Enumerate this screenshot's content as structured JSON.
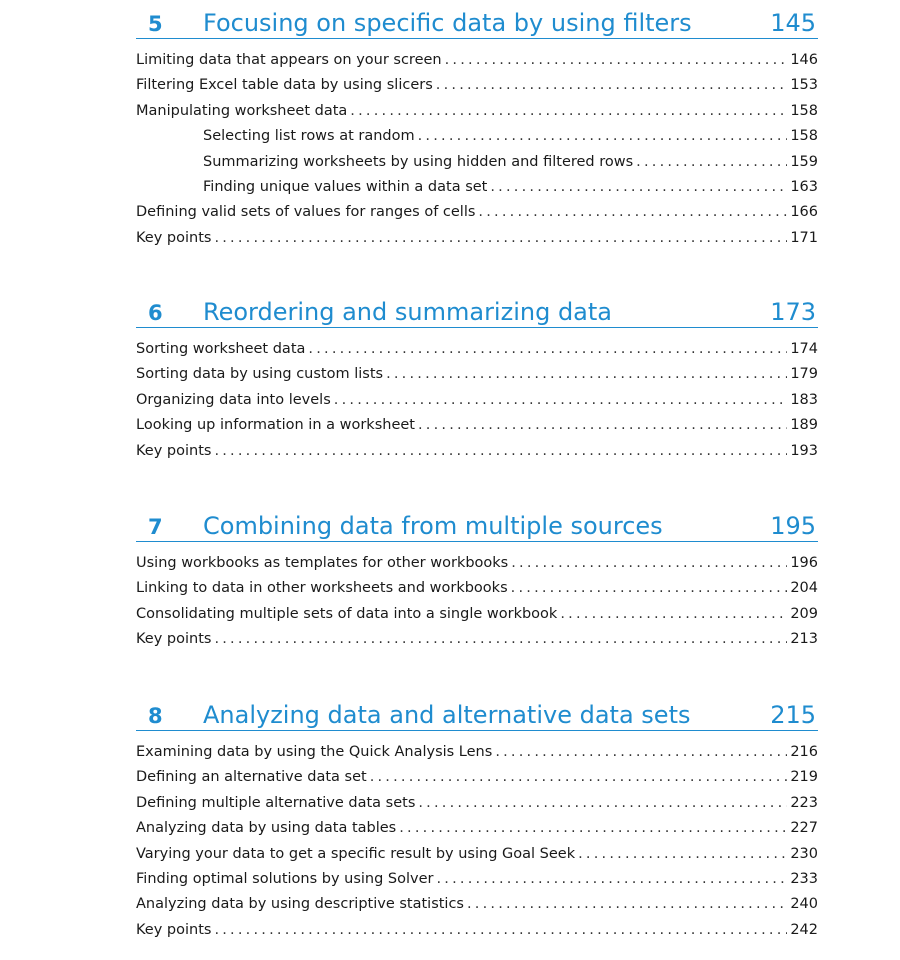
{
  "chapters": [
    {
      "number": "5",
      "title": "Focusing on specific data by using filters",
      "page": "145",
      "entries": [
        {
          "title": "Limiting data that appears on your screen",
          "page": "146"
        },
        {
          "title": "Filtering Excel table data by using slicers",
          "page": "153"
        },
        {
          "title": "Manipulating worksheet data",
          "page": "158"
        },
        {
          "title": "Selecting list rows at random",
          "page": "158"
        },
        {
          "title": "Summarizing worksheets by using hidden and filtered rows",
          "page": "159"
        },
        {
          "title": "Finding unique values within a data set",
          "page": "163"
        },
        {
          "title": "Defining valid sets of values for ranges of cells",
          "page": "166"
        },
        {
          "title": "Key points",
          "page": "171"
        }
      ]
    },
    {
      "number": "6",
      "title": "Reordering and summarizing data",
      "page": "173",
      "entries": [
        {
          "title": "Sorting worksheet data",
          "page": "174"
        },
        {
          "title": "Sorting data by using custom lists",
          "page": "179"
        },
        {
          "title": "Organizing data into levels",
          "page": "183"
        },
        {
          "title": "Looking up information in a worksheet",
          "page": "189"
        },
        {
          "title": "Key points",
          "page": "193"
        }
      ]
    },
    {
      "number": "7",
      "title": "Combining data from multiple sources",
      "page": "195",
      "entries": [
        {
          "title": "Using workbooks as templates for other workbooks",
          "page": "196"
        },
        {
          "title": "Linking to data in other worksheets and workbooks",
          "page": "204"
        },
        {
          "title": "Consolidating multiple sets of data into a single workbook",
          "page": "209"
        },
        {
          "title": "Key points",
          "page": "213"
        }
      ]
    },
    {
      "number": "8",
      "title": "Analyzing data and alternative data sets",
      "page": "215",
      "entries": [
        {
          "title": "Examining data by using the Quick Analysis Lens",
          "page": "216"
        },
        {
          "title": "Defining an alternative data set",
          "page": "219"
        },
        {
          "title": "Defining multiple alternative data sets",
          "page": "223"
        },
        {
          "title": "Analyzing data by using data tables",
          "page": "227"
        },
        {
          "title": "Varying your data to get a specific result by using Goal Seek",
          "page": "230"
        },
        {
          "title": "Finding optimal solutions by using Solver",
          "page": "233"
        },
        {
          "title": "Analyzing data by using descriptive statistics",
          "page": "240"
        },
        {
          "title": "Key points",
          "page": "242"
        }
      ]
    }
  ],
  "colors": {
    "accent": "#1f8ccf",
    "text": "#1a1a1a"
  }
}
